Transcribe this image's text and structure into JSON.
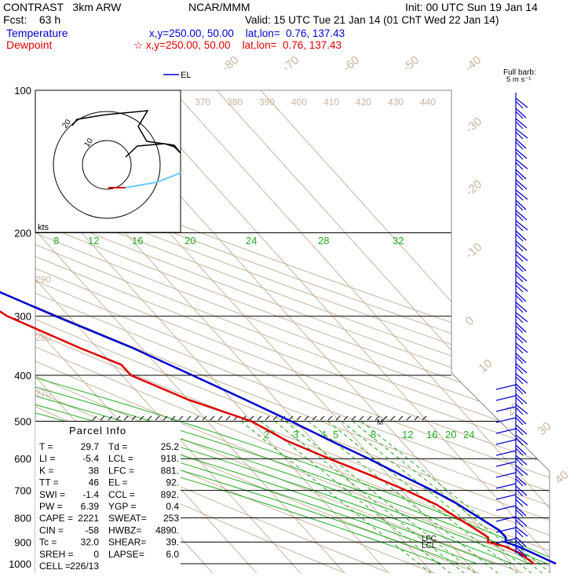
{
  "header": {
    "model": "CONTRAST   3km ARW",
    "fcst": "Fcst:    63 h",
    "org": "NCAR/MMM",
    "init": "Init: 00 UTC Sun 19 Jan 14",
    "valid": "Valid: 15 UTC Tue 21 Jan 14 (01 ChT Wed 22 Jan 14)",
    "temperature_label": "Temperature",
    "temperature_loc": "x,y=250.00, 50.00    lat,lon=  0.76, 137.43",
    "dewpoint_label": "Dewpoint",
    "dewpoint_loc": "☆ x,y=250.00, 50.00    lat,lon=  0.76, 137.43"
  },
  "colors": {
    "temperature": "#0000cc",
    "dewpoint": "#dd0000",
    "isotherm": "#c8b49b",
    "mixing_ratio": "#22aa22",
    "moist_adiabat": "#22aa22",
    "hodo_observed": "#000000",
    "hodo_forecast": "#66ccff",
    "isobar": "#000000"
  },
  "labels": {
    "el_legend": "EL",
    "full_barb": "Full barb:",
    "barb_unit": "5 m s⁻¹",
    "parcel_title": "Parcel Info",
    "kts": "kts",
    "hodo_ring_inner": "10",
    "hodo_ring_outer": "20",
    "marker_m": "M",
    "lfc": "LFC",
    "lcl": "LCL"
  },
  "parcel_info": [
    {
      "left": "T   =",
      "lval": "29.7",
      "right": "Td =",
      "rval": "25.2"
    },
    {
      "left": "LI  =",
      "lval": "-5.4",
      "right": "LCL =",
      "rval": "918."
    },
    {
      "left": "K   =",
      "lval": "38",
      "right": "LFC =",
      "rval": "881."
    },
    {
      "left": "TT  =",
      "lval": "46",
      "right": "EL =",
      "rval": "92."
    },
    {
      "left": "SWI =",
      "lval": "-1.4",
      "right": "CCL =",
      "rval": "892."
    },
    {
      "left": "PW  =",
      "lval": "6.39",
      "right": "YGP =",
      "rval": "0.4"
    },
    {
      "left": "CAPE =",
      "lval": "2221",
      "right": "SWEAT=",
      "rval": "253"
    },
    {
      "left": "CIN  =",
      "lval": "-58",
      "right": "HWBZ=",
      "rval": "4890."
    },
    {
      "left": "Tc  =",
      "lval": "32.0",
      "right": "SHEAR=",
      "rval": "39."
    },
    {
      "left": "SREH =",
      "lval": "0",
      "right": "LAPSE=",
      "rval": "6.0"
    },
    {
      "left": "CELL =",
      "lval": "226/13",
      "right": "",
      "rval": ""
    }
  ],
  "chart_data": {
    "type": "line",
    "title": "",
    "xlabel": "",
    "ylabel": "",
    "y_scale": "log (pressure, skew-T)",
    "pressure_ticks": [
      100,
      200,
      300,
      400,
      500,
      600,
      700,
      800,
      900,
      1000
    ],
    "isotherm_labels": [
      "-80",
      "-70",
      "-60",
      "-50",
      "-40",
      "-30",
      "-20",
      "-10",
      "0",
      "10",
      "20",
      "30",
      "40"
    ],
    "theta_labels_upper": [
      "370",
      "380",
      "390",
      "400",
      "410",
      "420",
      "430",
      "440"
    ],
    "theta_labels_left": [
      "290",
      "280",
      "270"
    ],
    "mixing_ratio_labels_upper": [
      "8",
      "12",
      "16",
      "20",
      "24",
      "28",
      "32"
    ],
    "mixing_ratio_labels_lower": [
      "2",
      "3",
      "4",
      "5",
      "8",
      "12",
      "16",
      "20",
      "24"
    ],
    "series": [
      {
        "name": "Temperature",
        "pressure": [
          100,
          120,
          150,
          180,
          200,
          250,
          300,
          350,
          400,
          450,
          500,
          550,
          600,
          650,
          700,
          750,
          800,
          850,
          880,
          900,
          920,
          950,
          1000
        ],
        "temperature_c": [
          -72,
          -70,
          -67,
          -61,
          -56,
          -45,
          -33,
          -22,
          -14,
          -7,
          -1,
          4,
          9,
          13,
          17,
          20,
          22,
          24,
          24,
          23,
          25,
          27,
          30
        ]
      },
      {
        "name": "Dewpoint",
        "pressure": [
          100,
          120,
          150,
          180,
          200,
          250,
          280,
          300,
          350,
          380,
          400,
          450,
          500,
          550,
          600,
          650,
          700,
          750,
          800,
          850,
          880,
          900,
          920,
          950,
          1000
        ],
        "dewpoint_c": [
          -80,
          -76,
          -72,
          -66,
          -62,
          -52,
          -46,
          -44,
          -34,
          -28,
          -28,
          -20,
          -10,
          -6,
          0,
          6,
          11,
          15,
          17,
          19,
          20,
          19,
          22,
          24,
          25
        ]
      }
    ]
  }
}
